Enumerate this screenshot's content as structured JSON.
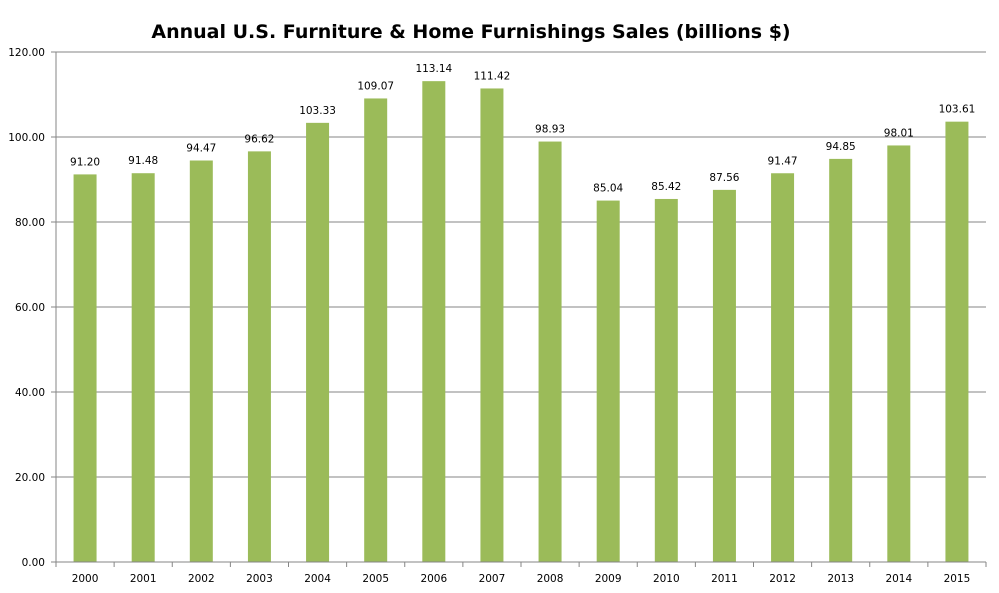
{
  "chart_data": {
    "type": "bar",
    "title": "Annual U.S. Furniture & Home Furnishings Sales (billions $)",
    "xlabel": "",
    "ylabel": "",
    "categories": [
      "2000",
      "2001",
      "2002",
      "2003",
      "2004",
      "2005",
      "2006",
      "2007",
      "2008",
      "2009",
      "2010",
      "2011",
      "2012",
      "2013",
      "2014",
      "2015"
    ],
    "values": [
      91.2,
      91.48,
      94.47,
      96.62,
      103.33,
      109.07,
      113.14,
      111.42,
      98.93,
      85.04,
      85.42,
      87.56,
      91.47,
      94.85,
      98.01,
      103.61
    ],
    "data_labels": [
      "91.20",
      "91.48",
      "94.47",
      "96.62",
      "103.33",
      "109.07",
      "113.14",
      "111.42",
      "98.93",
      "85.04",
      "85.42",
      "87.56",
      "91.47",
      "94.85",
      "98.01",
      "103.61"
    ],
    "ylim": [
      0,
      120
    ],
    "yticks": [
      "0.00",
      "20.00",
      "40.00",
      "60.00",
      "80.00",
      "100.00",
      "120.00"
    ],
    "grid": true,
    "legend": "none",
    "bar_color": "#9BBB59",
    "grid_color": "#868686"
  }
}
